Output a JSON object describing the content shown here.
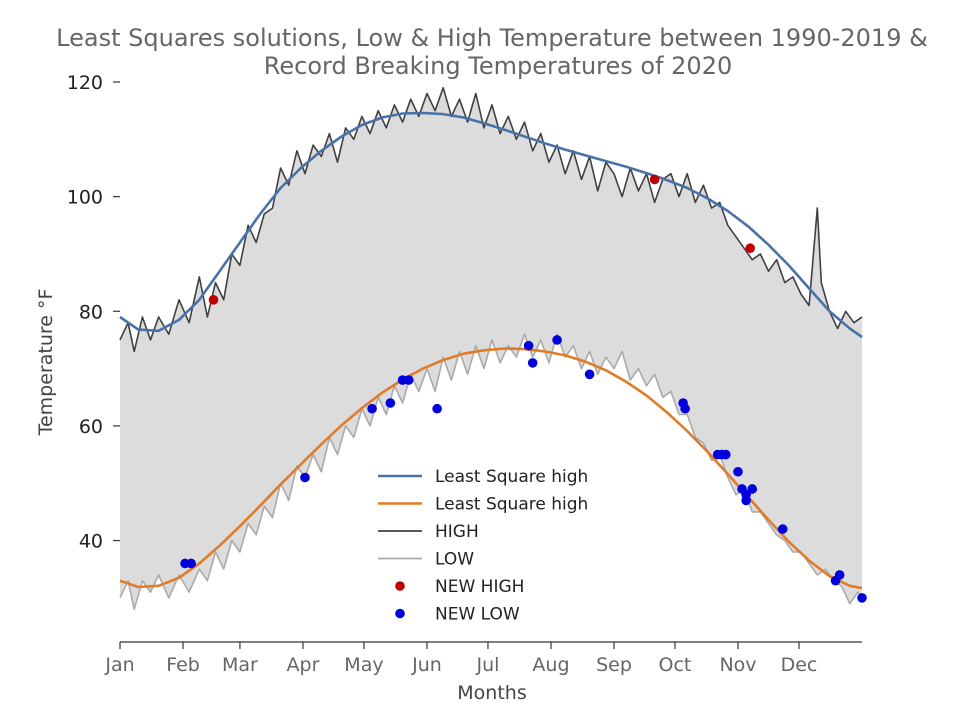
{
  "chart_data": {
    "type": "line",
    "title": "Least Squares solutions, Low & High Temperature between 1990-2019 &",
    "title_line2": "Record Breaking Temperatures of 2020",
    "xlabel": "Months",
    "ylabel": "Temperature °F",
    "xlim": [
      1,
      366
    ],
    "ylim": [
      23,
      120
    ],
    "y_ticks": [
      40,
      60,
      80,
      100,
      120
    ],
    "x_ticks": [
      {
        "label": "Jan",
        "day": 1
      },
      {
        "label": "Feb",
        "day": 32
      },
      {
        "label": "Mar",
        "day": 60
      },
      {
        "label": "Apr",
        "day": 91
      },
      {
        "label": "May",
        "day": 121
      },
      {
        "label": "Jun",
        "day": 152
      },
      {
        "label": "Jul",
        "day": 182
      },
      {
        "label": "Aug",
        "day": 213
      },
      {
        "label": "Sep",
        "day": 244
      },
      {
        "label": "Oct",
        "day": 274
      },
      {
        "label": "Nov",
        "day": 305
      },
      {
        "label": "Dec",
        "day": 335
      }
    ],
    "grid": false,
    "legend_position": "bottom-center",
    "fill_between": {
      "series": [
        "HIGH",
        "LOW"
      ],
      "color": "#dcdcdc"
    },
    "series": [
      {
        "name": "Least Square high",
        "kind": "line",
        "color": "#4a72a8",
        "points": [
          [
            1,
            79
          ],
          [
            10,
            76.8
          ],
          [
            20,
            76.6
          ],
          [
            30,
            78.5
          ],
          [
            40,
            82
          ],
          [
            50,
            87
          ],
          [
            60,
            92
          ],
          [
            70,
            97
          ],
          [
            80,
            101.5
          ],
          [
            90,
            105
          ],
          [
            100,
            108
          ],
          [
            110,
            110.5
          ],
          [
            120,
            112.5
          ],
          [
            130,
            113.8
          ],
          [
            140,
            114.5
          ],
          [
            150,
            114.6
          ],
          [
            160,
            114.4
          ],
          [
            170,
            113.8
          ],
          [
            180,
            112.8
          ],
          [
            190,
            111.7
          ],
          [
            200,
            110.5
          ],
          [
            210,
            109.3
          ],
          [
            220,
            108.2
          ],
          [
            230,
            107.2
          ],
          [
            240,
            106.2
          ],
          [
            250,
            105.2
          ],
          [
            260,
            104.1
          ],
          [
            270,
            102.9
          ],
          [
            280,
            101.5
          ],
          [
            290,
            99.7
          ],
          [
            300,
            97.5
          ],
          [
            310,
            94.8
          ],
          [
            320,
            91.6
          ],
          [
            330,
            88
          ],
          [
            340,
            84
          ],
          [
            350,
            80
          ],
          [
            360,
            77
          ],
          [
            366,
            75.5
          ]
        ]
      },
      {
        "name": "Least Square high",
        "kind": "line",
        "color": "#e07b28",
        "points": [
          [
            1,
            33
          ],
          [
            10,
            31.9
          ],
          [
            20,
            32.1
          ],
          [
            30,
            33.5
          ],
          [
            40,
            36
          ],
          [
            50,
            39.1
          ],
          [
            60,
            42.5
          ],
          [
            70,
            46.1
          ],
          [
            80,
            49.8
          ],
          [
            90,
            53.3
          ],
          [
            100,
            56.8
          ],
          [
            110,
            60.1
          ],
          [
            120,
            63.1
          ],
          [
            130,
            65.8
          ],
          [
            140,
            68.1
          ],
          [
            150,
            70
          ],
          [
            160,
            71.5
          ],
          [
            170,
            72.6
          ],
          [
            180,
            73.2
          ],
          [
            190,
            73.5
          ],
          [
            200,
            73.4
          ],
          [
            210,
            73
          ],
          [
            220,
            72.3
          ],
          [
            230,
            71.2
          ],
          [
            240,
            69.7
          ],
          [
            250,
            67.7
          ],
          [
            260,
            65.3
          ],
          [
            270,
            62.4
          ],
          [
            280,
            59.1
          ],
          [
            290,
            55.5
          ],
          [
            300,
            51.6
          ],
          [
            310,
            47.6
          ],
          [
            320,
            43.6
          ],
          [
            330,
            39.8
          ],
          [
            340,
            36.5
          ],
          [
            350,
            33.8
          ],
          [
            360,
            32.1
          ],
          [
            366,
            31.7
          ]
        ]
      },
      {
        "name": "HIGH",
        "kind": "line",
        "color": "#404040",
        "points": [
          [
            1,
            75
          ],
          [
            5,
            78
          ],
          [
            8,
            73
          ],
          [
            12,
            79
          ],
          [
            16,
            75
          ],
          [
            20,
            79
          ],
          [
            25,
            76
          ],
          [
            30,
            82
          ],
          [
            35,
            78
          ],
          [
            40,
            86
          ],
          [
            44,
            79
          ],
          [
            48,
            85
          ],
          [
            52,
            82
          ],
          [
            56,
            90
          ],
          [
            60,
            88
          ],
          [
            64,
            95
          ],
          [
            68,
            92
          ],
          [
            72,
            97
          ],
          [
            76,
            98
          ],
          [
            80,
            105
          ],
          [
            84,
            102
          ],
          [
            88,
            108
          ],
          [
            92,
            104
          ],
          [
            96,
            109
          ],
          [
            100,
            107
          ],
          [
            104,
            111
          ],
          [
            108,
            106
          ],
          [
            112,
            112
          ],
          [
            116,
            110
          ],
          [
            120,
            114
          ],
          [
            124,
            111
          ],
          [
            128,
            115
          ],
          [
            132,
            112
          ],
          [
            136,
            116
          ],
          [
            140,
            113
          ],
          [
            144,
            117
          ],
          [
            148,
            114
          ],
          [
            152,
            118
          ],
          [
            156,
            115
          ],
          [
            160,
            119
          ],
          [
            164,
            114
          ],
          [
            168,
            117
          ],
          [
            172,
            113
          ],
          [
            176,
            118
          ],
          [
            180,
            112
          ],
          [
            184,
            116
          ],
          [
            188,
            111
          ],
          [
            192,
            114
          ],
          [
            196,
            110
          ],
          [
            200,
            113
          ],
          [
            204,
            108
          ],
          [
            208,
            111
          ],
          [
            212,
            106
          ],
          [
            216,
            109
          ],
          [
            220,
            104
          ],
          [
            224,
            108
          ],
          [
            228,
            103
          ],
          [
            232,
            107
          ],
          [
            236,
            101
          ],
          [
            240,
            106
          ],
          [
            244,
            104
          ],
          [
            248,
            100
          ],
          [
            252,
            105
          ],
          [
            256,
            101
          ],
          [
            260,
            104
          ],
          [
            264,
            99
          ],
          [
            268,
            103
          ],
          [
            272,
            104
          ],
          [
            276,
            100
          ],
          [
            280,
            104
          ],
          [
            284,
            99
          ],
          [
            288,
            102
          ],
          [
            292,
            98
          ],
          [
            296,
            99
          ],
          [
            300,
            95
          ],
          [
            304,
            93
          ],
          [
            308,
            91
          ],
          [
            312,
            89
          ],
          [
            316,
            90
          ],
          [
            320,
            87
          ],
          [
            324,
            89
          ],
          [
            328,
            85
          ],
          [
            332,
            86
          ],
          [
            336,
            83
          ],
          [
            340,
            81
          ],
          [
            344,
            98
          ],
          [
            346,
            85
          ],
          [
            350,
            80
          ],
          [
            354,
            77
          ],
          [
            358,
            80
          ],
          [
            362,
            78
          ],
          [
            366,
            79
          ]
        ]
      },
      {
        "name": "LOW",
        "kind": "line",
        "color": "#aaaaaa",
        "points": [
          [
            1,
            30
          ],
          [
            5,
            33
          ],
          [
            8,
            28
          ],
          [
            12,
            33
          ],
          [
            16,
            31
          ],
          [
            20,
            34
          ],
          [
            25,
            30
          ],
          [
            30,
            34
          ],
          [
            35,
            31
          ],
          [
            40,
            35
          ],
          [
            44,
            33
          ],
          [
            48,
            38
          ],
          [
            52,
            35
          ],
          [
            56,
            40
          ],
          [
            60,
            38
          ],
          [
            64,
            43
          ],
          [
            68,
            41
          ],
          [
            72,
            46
          ],
          [
            76,
            44
          ],
          [
            80,
            50
          ],
          [
            84,
            47
          ],
          [
            88,
            53
          ],
          [
            92,
            51
          ],
          [
            96,
            55
          ],
          [
            100,
            52
          ],
          [
            104,
            58
          ],
          [
            108,
            55
          ],
          [
            112,
            60
          ],
          [
            116,
            58
          ],
          [
            120,
            63
          ],
          [
            124,
            60
          ],
          [
            128,
            65
          ],
          [
            132,
            62
          ],
          [
            136,
            67
          ],
          [
            140,
            64
          ],
          [
            144,
            69
          ],
          [
            148,
            66
          ],
          [
            152,
            70
          ],
          [
            156,
            66
          ],
          [
            160,
            72
          ],
          [
            164,
            68
          ],
          [
            168,
            73
          ],
          [
            172,
            69
          ],
          [
            176,
            74
          ],
          [
            180,
            70
          ],
          [
            184,
            75
          ],
          [
            188,
            71
          ],
          [
            192,
            74
          ],
          [
            196,
            72
          ],
          [
            200,
            76
          ],
          [
            204,
            72
          ],
          [
            208,
            75
          ],
          [
            212,
            71
          ],
          [
            216,
            76
          ],
          [
            220,
            72
          ],
          [
            224,
            74
          ],
          [
            228,
            70
          ],
          [
            232,
            73
          ],
          [
            236,
            69
          ],
          [
            240,
            72
          ],
          [
            244,
            70
          ],
          [
            248,
            73
          ],
          [
            252,
            68
          ],
          [
            256,
            70
          ],
          [
            260,
            67
          ],
          [
            264,
            69
          ],
          [
            268,
            65
          ],
          [
            272,
            66
          ],
          [
            276,
            62
          ],
          [
            280,
            62
          ],
          [
            284,
            58
          ],
          [
            288,
            57
          ],
          [
            292,
            54
          ],
          [
            296,
            55
          ],
          [
            300,
            51
          ],
          [
            304,
            48
          ],
          [
            308,
            49
          ],
          [
            312,
            45
          ],
          [
            316,
            45
          ],
          [
            320,
            43
          ],
          [
            324,
            41
          ],
          [
            328,
            40
          ],
          [
            332,
            38
          ],
          [
            336,
            38
          ],
          [
            340,
            36
          ],
          [
            344,
            34
          ],
          [
            348,
            35
          ],
          [
            352,
            33
          ],
          [
            356,
            32
          ],
          [
            360,
            29
          ],
          [
            364,
            31
          ],
          [
            366,
            30
          ]
        ]
      },
      {
        "name": "NEW HIGH",
        "kind": "scatter",
        "color": "#c00000",
        "points": [
          [
            47,
            82
          ],
          [
            264,
            103
          ],
          [
            311,
            91
          ]
        ]
      },
      {
        "name": "NEW LOW",
        "kind": "scatter",
        "color": "#0000dd",
        "points": [
          [
            33,
            36
          ],
          [
            36,
            36
          ],
          [
            92,
            51
          ],
          [
            125,
            63
          ],
          [
            134,
            64
          ],
          [
            140,
            68
          ],
          [
            143,
            68
          ],
          [
            157,
            63
          ],
          [
            202,
            74
          ],
          [
            204,
            71
          ],
          [
            216,
            75
          ],
          [
            232,
            69
          ],
          [
            278,
            64
          ],
          [
            279,
            63
          ],
          [
            295,
            55
          ],
          [
            297,
            55
          ],
          [
            299,
            55
          ],
          [
            305,
            52
          ],
          [
            307,
            49
          ],
          [
            309,
            48
          ],
          [
            309,
            47
          ],
          [
            312,
            49
          ],
          [
            327,
            42
          ],
          [
            353,
            33
          ],
          [
            355,
            34
          ],
          [
            366,
            30
          ]
        ]
      }
    ]
  }
}
